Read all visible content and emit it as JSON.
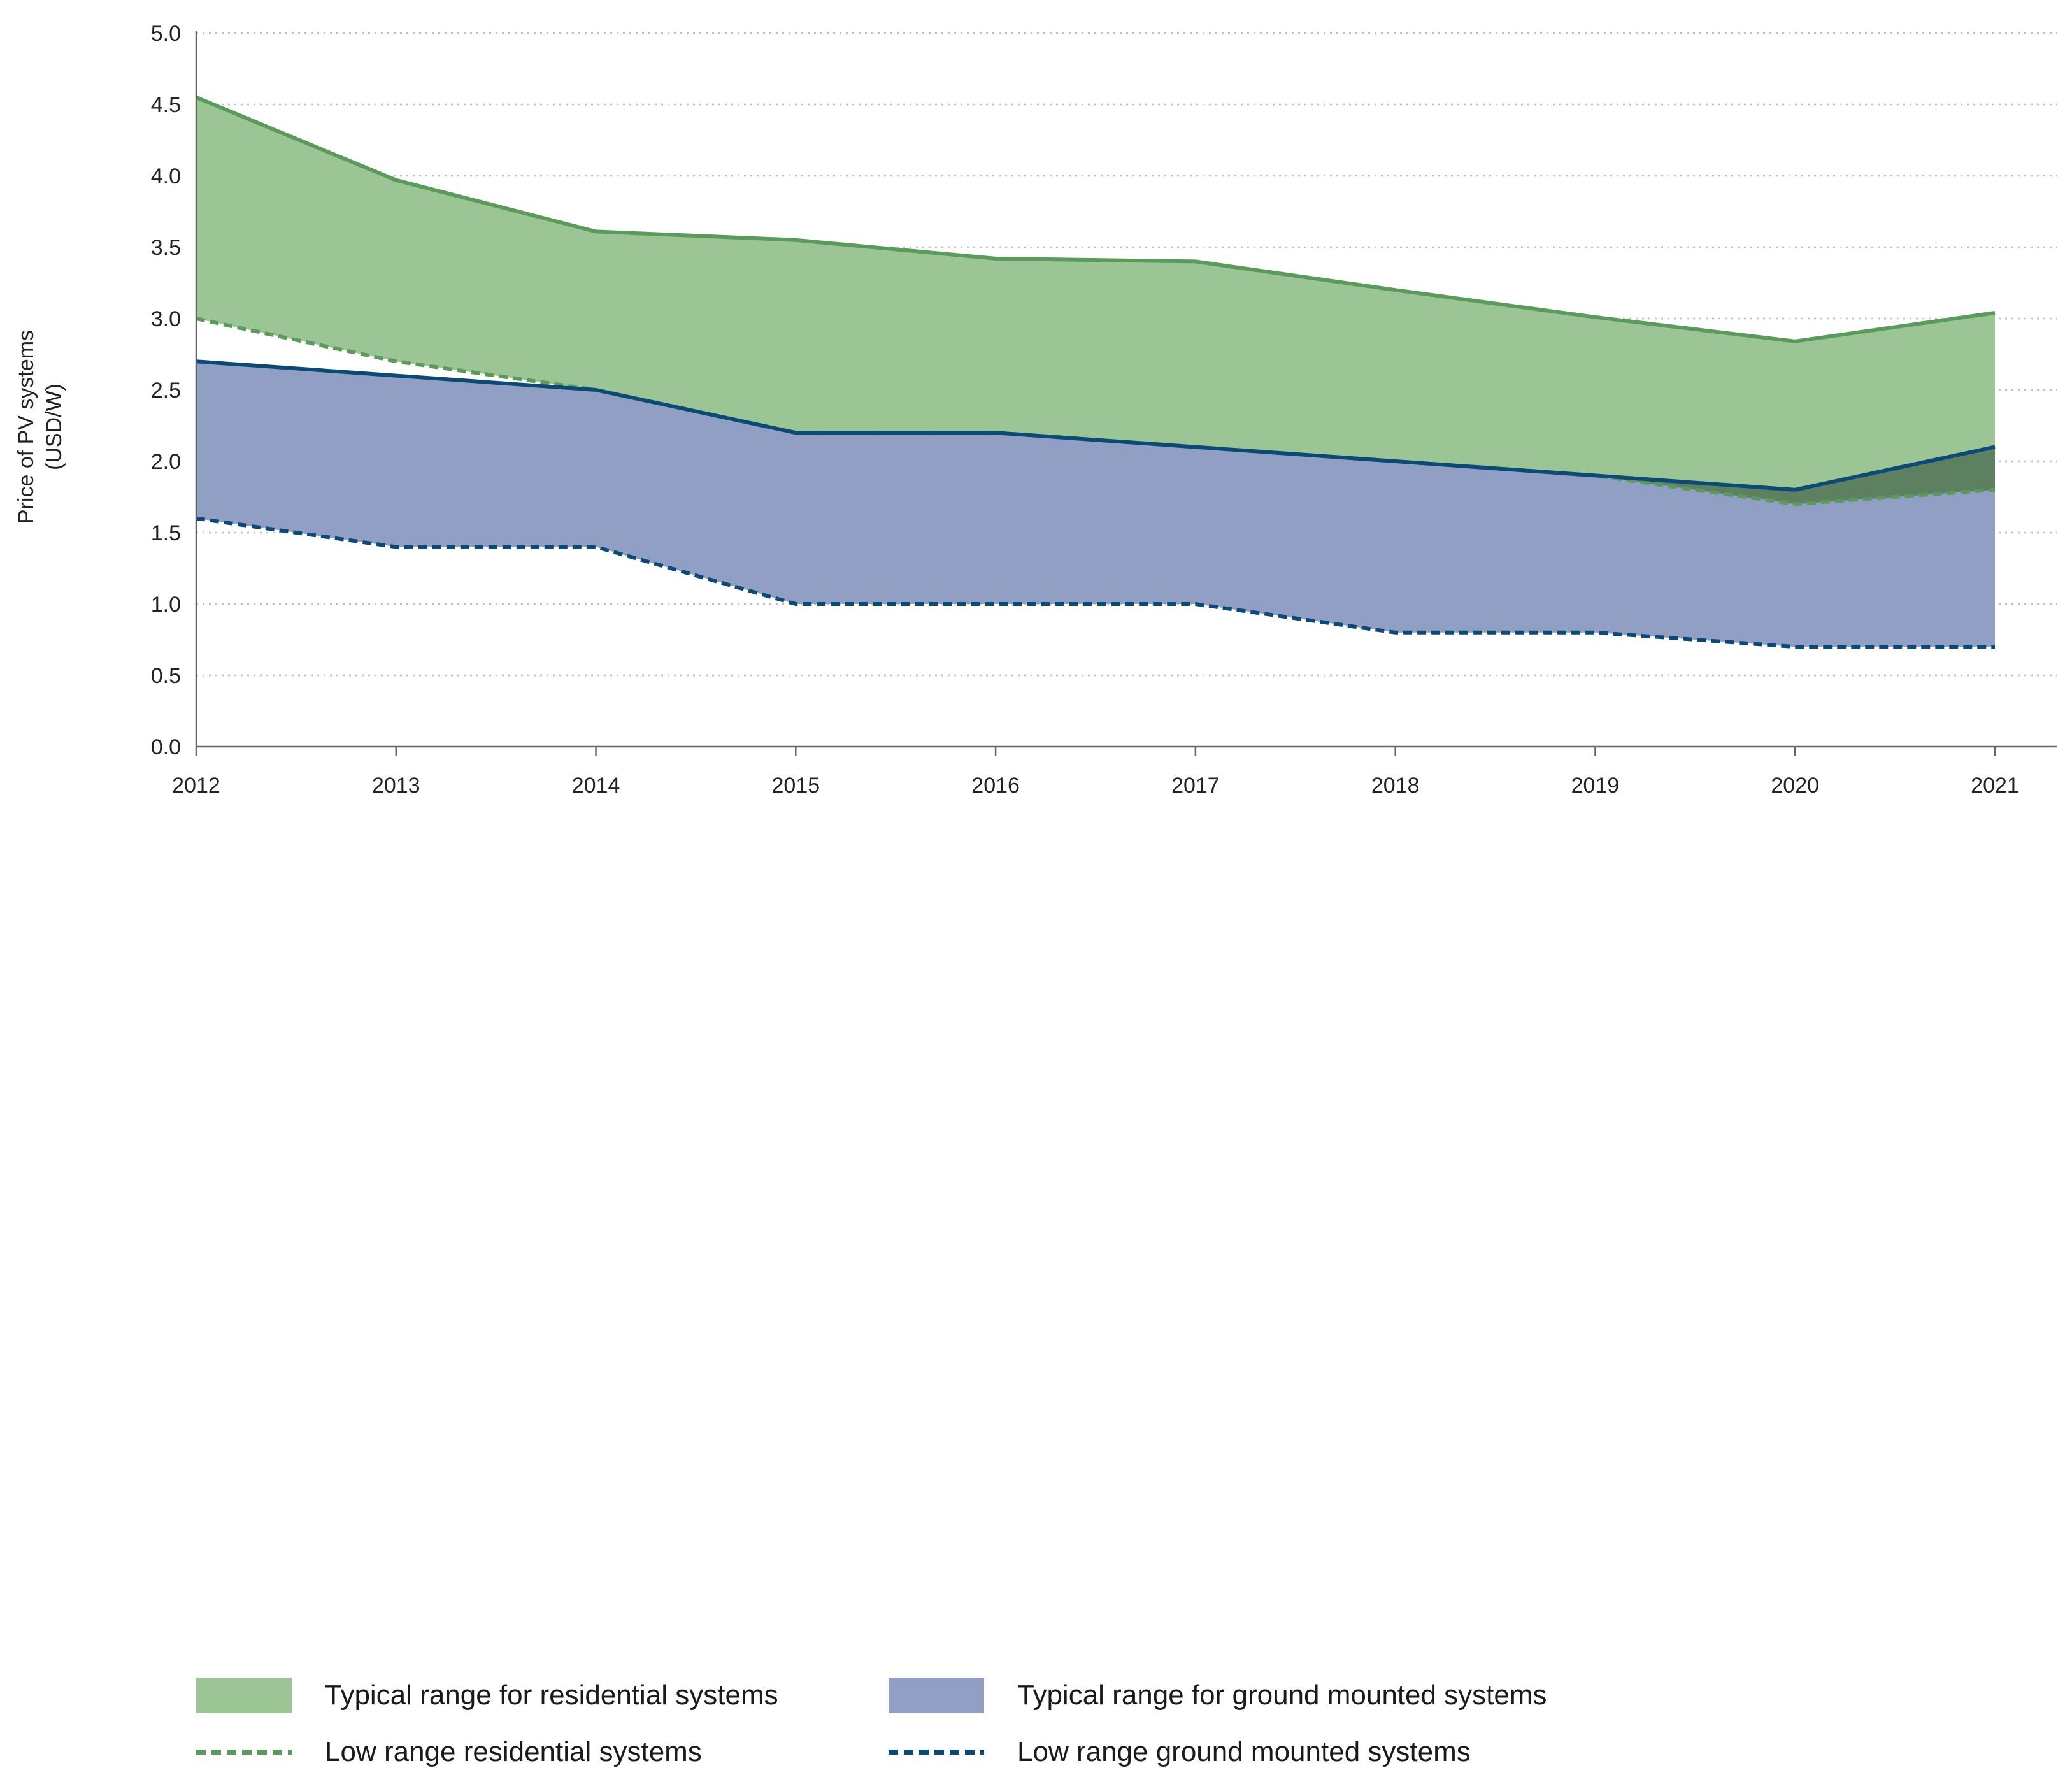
{
  "chart_data": {
    "type": "area",
    "title": "",
    "xlabel": "",
    "ylabel": "Price of PV systems (USD/W)",
    "ylabel_line1": "Price of PV systems",
    "ylabel_line2": "(USD/W)",
    "ylim": [
      0,
      5
    ],
    "yticks": [
      "0.0",
      "0.5",
      "1.0",
      "1.5",
      "2.0",
      "2.5",
      "3.0",
      "3.5",
      "4.0",
      "4.5",
      "5.0"
    ],
    "ytick_values": [
      0,
      0.5,
      1.0,
      1.5,
      2.0,
      2.5,
      3.0,
      3.5,
      4.0,
      4.5,
      5.0
    ],
    "categories": [
      "2012",
      "2013",
      "2014",
      "2015",
      "2016",
      "2017",
      "2018",
      "2019",
      "2020",
      "2021"
    ],
    "grid": true,
    "series": [
      {
        "name": "Typical range for residential systems (high)",
        "values": [
          4.55,
          3.97,
          3.61,
          3.55,
          3.42,
          3.4,
          3.2,
          3.01,
          2.84,
          3.04
        ]
      },
      {
        "name": "Low range residential systems",
        "values": [
          3.0,
          2.7,
          2.5,
          2.2,
          2.2,
          2.1,
          2.0,
          1.9,
          1.7,
          1.8
        ]
      },
      {
        "name": "Typical range for ground mounted systems (high)",
        "values": [
          2.7,
          2.6,
          2.5,
          2.2,
          2.2,
          2.1,
          2.0,
          1.9,
          1.8,
          2.1
        ]
      },
      {
        "name": "Low range ground mounted systems",
        "values": [
          1.6,
          1.4,
          1.4,
          1.0,
          1.0,
          1.0,
          0.8,
          0.8,
          0.7,
          0.7
        ]
      }
    ]
  },
  "legend": {
    "residential_range": "Typical range for residential systems",
    "ground_range": "Typical range for ground mounted systems",
    "residential_low": "Low range residential systems",
    "ground_low": "Low range ground mounted systems"
  },
  "colors": {
    "residential_fill": "#9cc595",
    "residential_line": "#5a9a5a",
    "ground_fill": "#929fc4",
    "ground_line": "#0b4a76",
    "ground_dashed": "#0b4a76",
    "overlap_fill": "#5d8060",
    "grid": "#bdbdbd",
    "axis": "#666666"
  }
}
